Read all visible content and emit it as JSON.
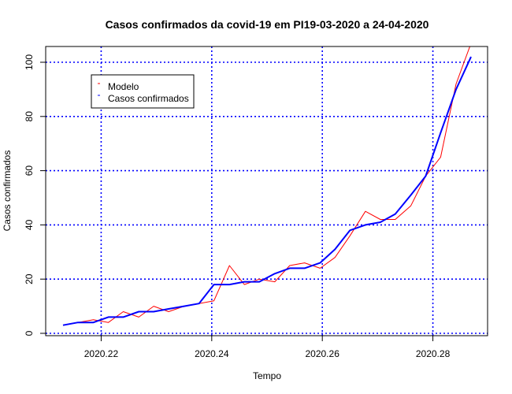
{
  "chart_data": {
    "type": "line",
    "title": "Casos confirmados da covid-19 em PI19-03-2020 a 24-04-2020",
    "xlabel": "Tempo",
    "ylabel": "Casos confirmados",
    "xlim": [
      2020.213,
      2020.29
    ],
    "ylim": [
      0,
      105
    ],
    "x_ticks": [
      2020.22,
      2020.24,
      2020.26,
      2020.28
    ],
    "x_tick_labels": [
      "2020.22",
      "2020.24",
      "2020.26",
      "2020.28"
    ],
    "y_ticks": [
      0,
      20,
      40,
      60,
      80,
      100
    ],
    "y_tick_labels": [
      "0",
      "20",
      "40",
      "60",
      "80",
      "100"
    ],
    "grid": true,
    "grid_color": "#0000ff",
    "legend_position": "top-left",
    "series": [
      {
        "name": "Modelo",
        "color": "#ff0000",
        "width": 1,
        "x": [
          2020.2131,
          2020.2158,
          2020.2186,
          2020.2213,
          2020.224,
          2020.2268,
          2020.2295,
          2020.2322,
          2020.235,
          2020.2377,
          2020.2404,
          2020.2432,
          2020.2459,
          2020.2486,
          2020.2514,
          2020.2541,
          2020.2568,
          2020.2596,
          2020.2623,
          2020.265,
          2020.2678,
          2020.2705,
          2020.2732,
          2020.276,
          2020.2787,
          2020.2814,
          2020.2842,
          2020.2869
        ],
        "y": [
          3,
          4,
          5,
          4,
          8,
          6,
          10,
          8,
          10,
          11,
          12,
          25,
          18,
          20,
          19,
          25,
          26,
          24,
          28,
          36,
          45,
          42,
          42,
          47,
          58,
          65,
          92,
          107
        ]
      },
      {
        "name": "Casos confirmados",
        "color": "#0000ff",
        "width": 2,
        "x": [
          2020.2131,
          2020.2158,
          2020.2186,
          2020.2213,
          2020.224,
          2020.2268,
          2020.2295,
          2020.2322,
          2020.235,
          2020.2377,
          2020.2404,
          2020.2432,
          2020.2459,
          2020.2486,
          2020.2514,
          2020.2541,
          2020.2568,
          2020.2596,
          2020.2623,
          2020.265,
          2020.2678,
          2020.2705,
          2020.2732,
          2020.276,
          2020.2787,
          2020.2814,
          2020.2842,
          2020.2869
        ],
        "y": [
          3,
          4,
          4,
          6,
          6,
          8,
          8,
          9,
          10,
          11,
          18,
          18,
          19,
          19,
          22,
          24,
          24,
          26,
          31,
          38,
          40,
          41,
          44,
          51,
          58,
          74,
          90,
          102
        ]
      }
    ]
  }
}
